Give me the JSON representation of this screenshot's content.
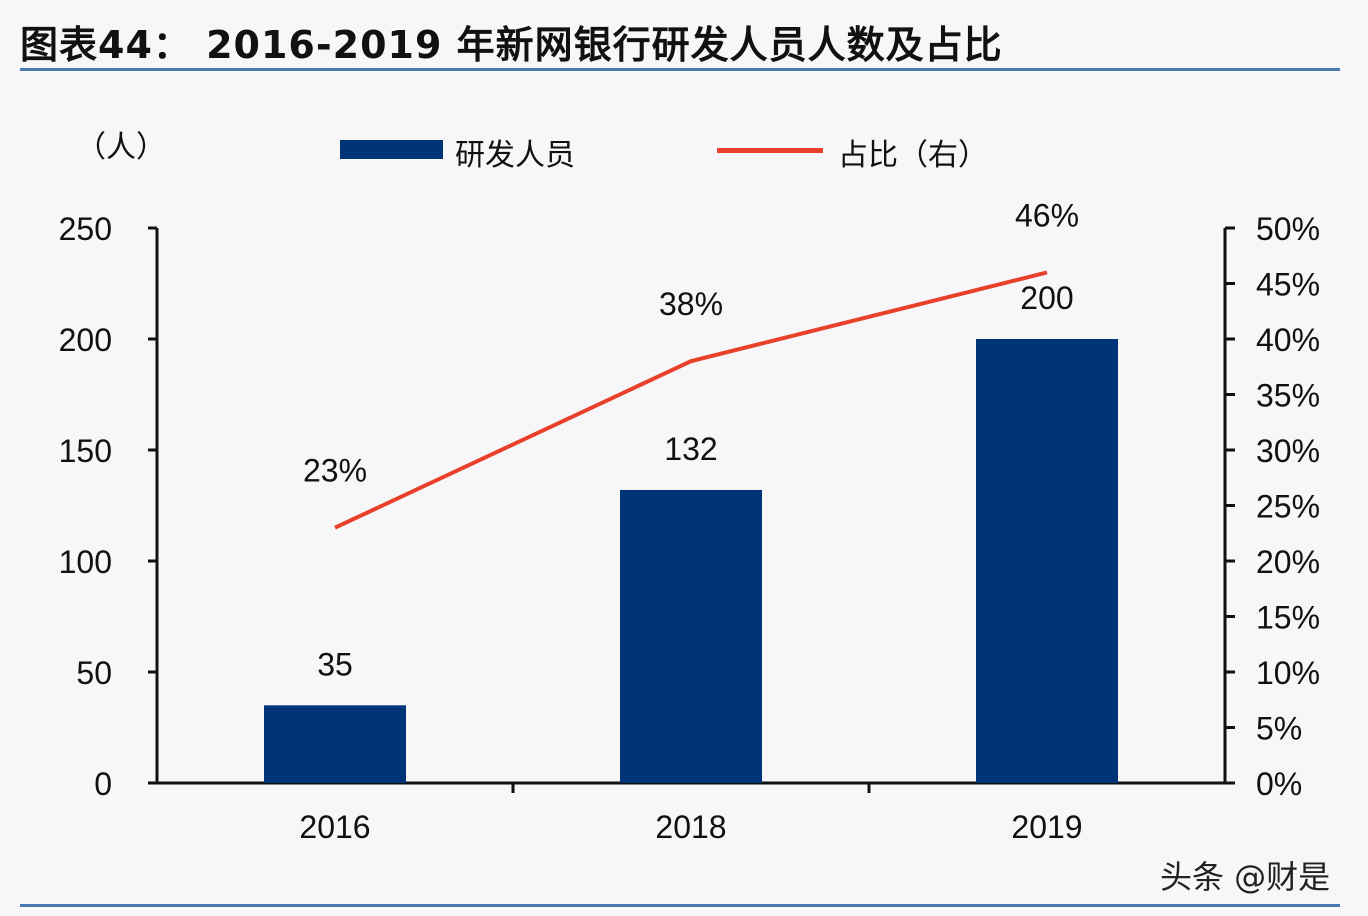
{
  "header": {
    "title": "图表44：  2016-2019 年新网银行研发人员人数及占比"
  },
  "legend": {
    "unit_label": "（人）",
    "bar_label": "研发人员",
    "line_label": "占比（右）"
  },
  "watermark": "头条 @财是",
  "colors": {
    "bar": "#003478",
    "line": "#e8402a",
    "rule": "#4a78b0"
  },
  "chart_data": {
    "type": "bar",
    "title": "2016-2019 年新网银行研发人员人数及占比",
    "categories": [
      "2016",
      "2018",
      "2019"
    ],
    "series": [
      {
        "name": "研发人员",
        "type": "bar",
        "axis": "left",
        "values": [
          35,
          132,
          200
        ],
        "labels": [
          "35",
          "132",
          "200"
        ]
      },
      {
        "name": "占比（右）",
        "type": "line",
        "axis": "right",
        "values": [
          0.23,
          0.38,
          0.46
        ],
        "labels": [
          "23%",
          "38%",
          "46%"
        ]
      }
    ],
    "xlabel": "",
    "ylabel": "（人）",
    "ylim": [
      0,
      250
    ],
    "y_ticks": [
      "0",
      "50",
      "100",
      "150",
      "200",
      "250"
    ],
    "y2lim": [
      0,
      0.5
    ],
    "y2_ticks": [
      "0%",
      "5%",
      "10%",
      "15%",
      "20%",
      "25%",
      "30%",
      "35%",
      "40%",
      "45%",
      "50%"
    ],
    "grid": false,
    "legend_position": "top"
  }
}
